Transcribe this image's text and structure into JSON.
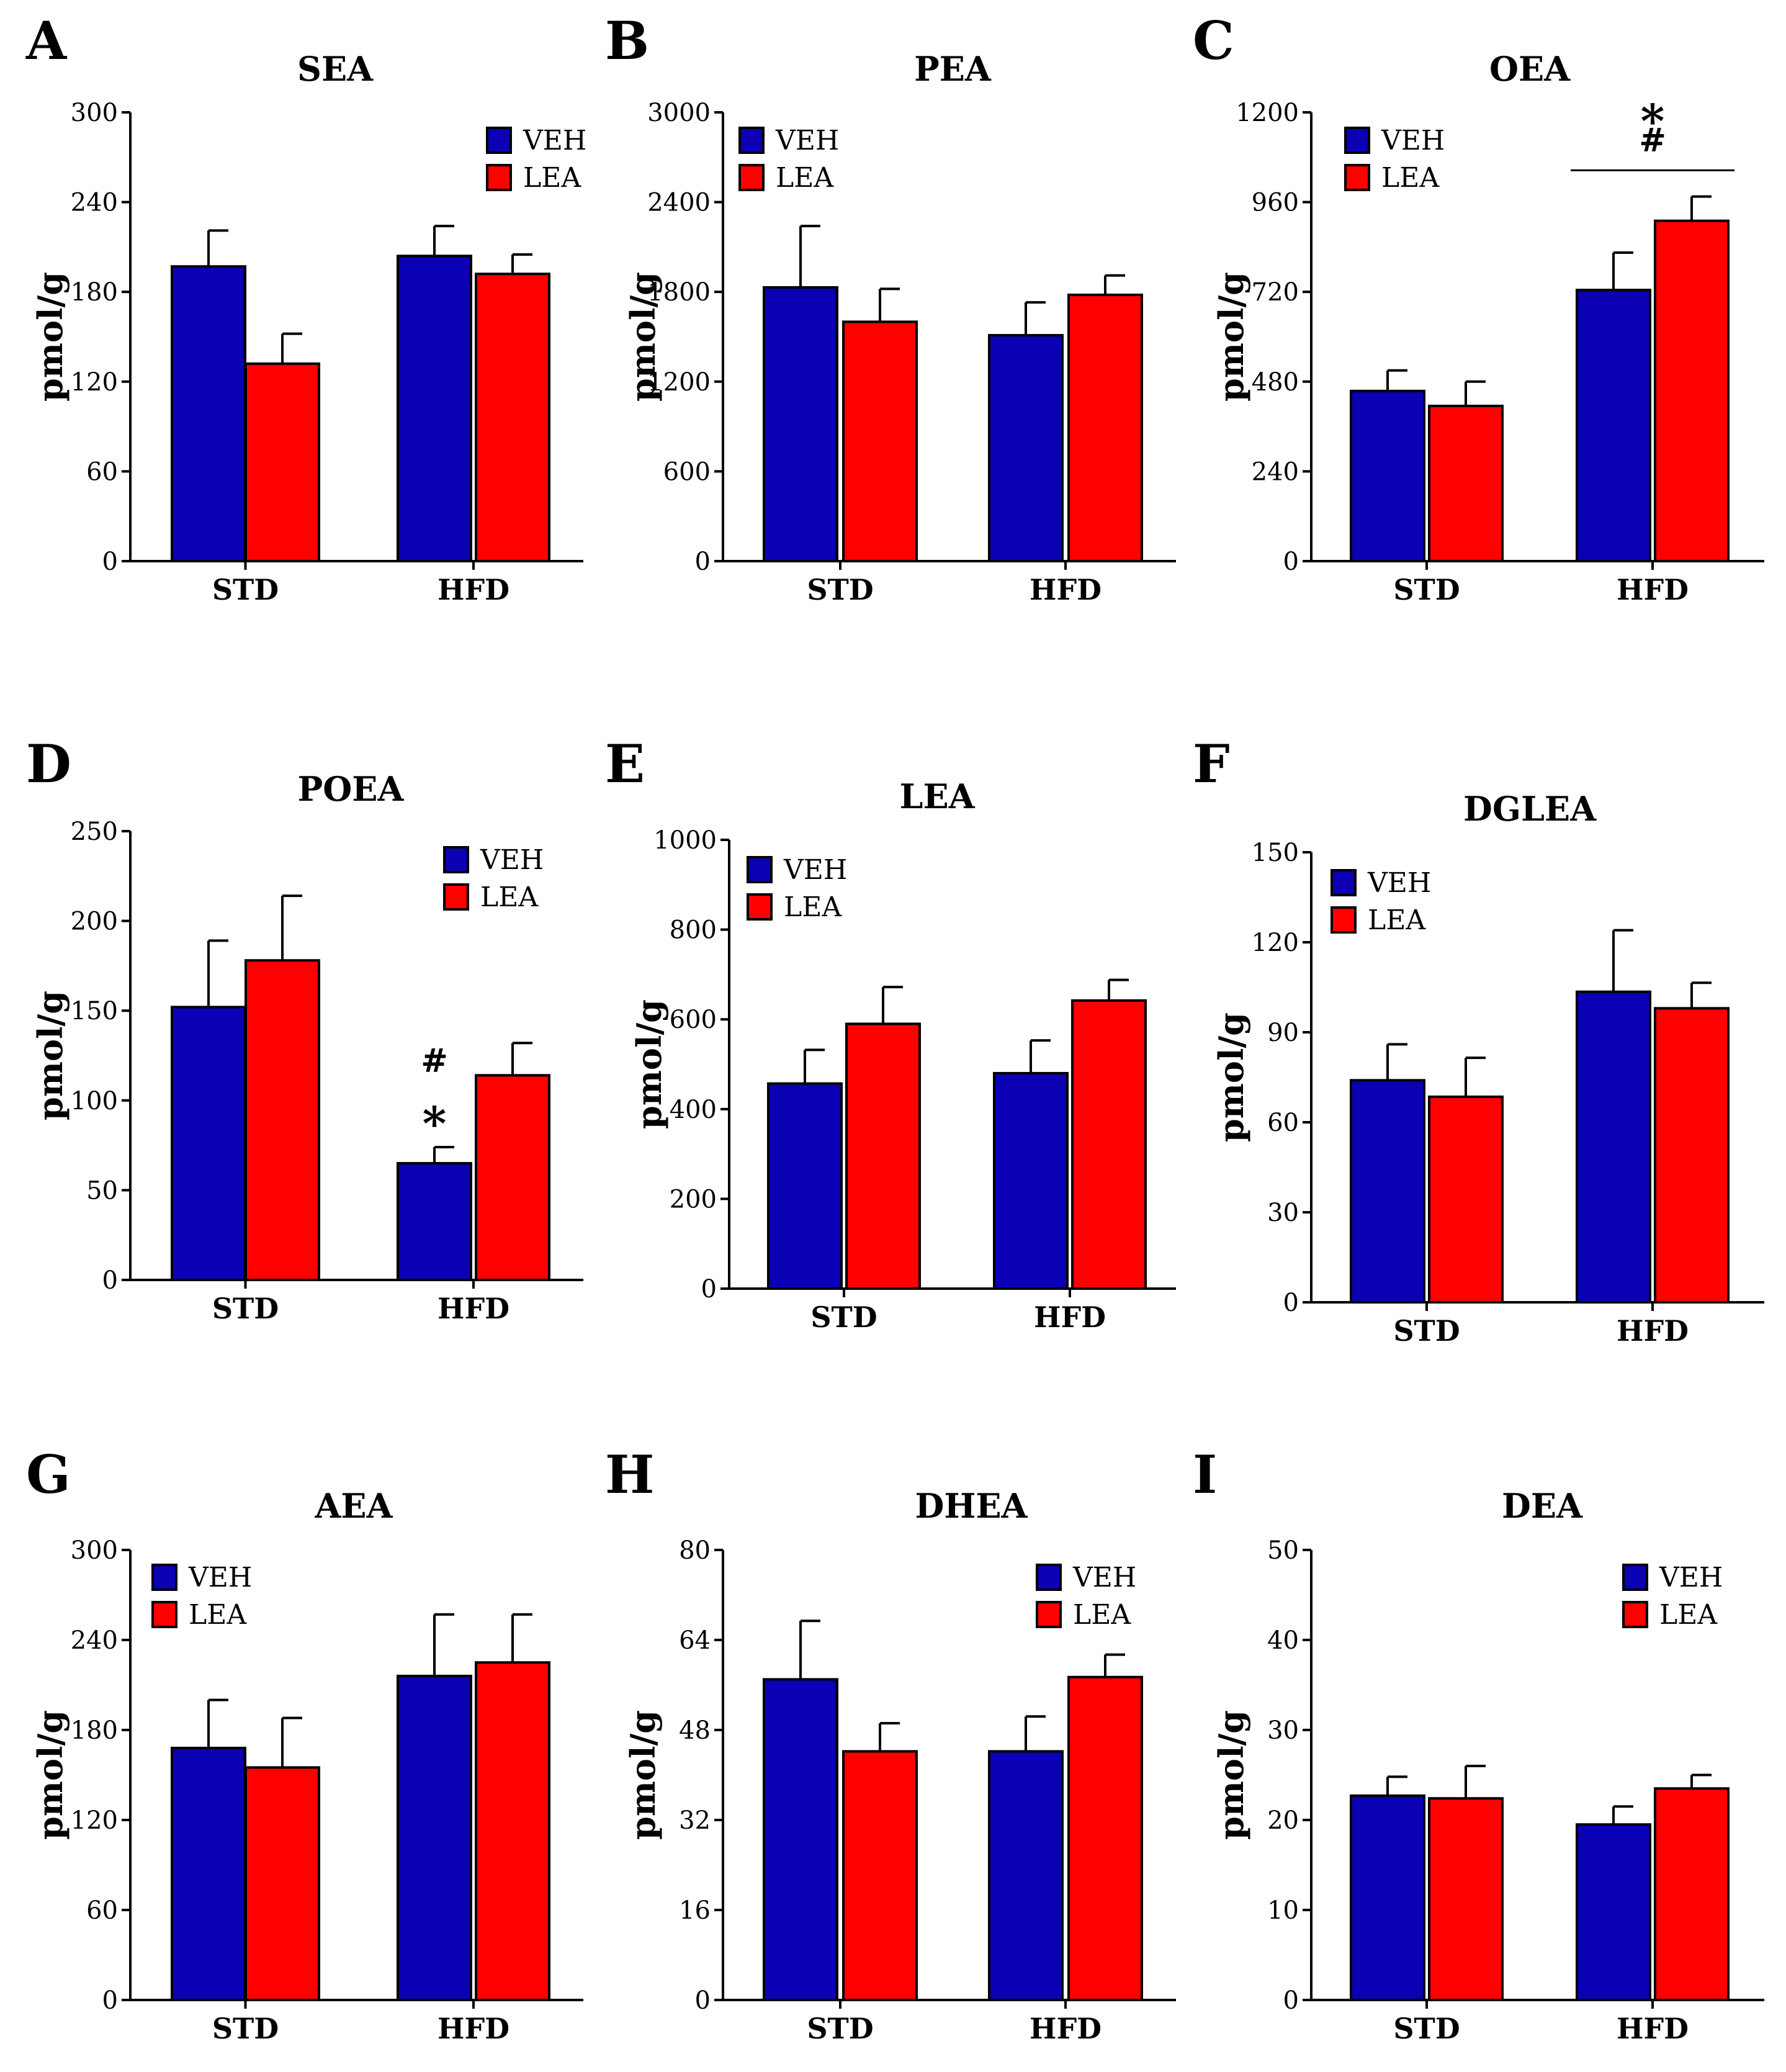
{
  "colors": {
    "veh": "#0b00b4",
    "lea": "#ff0000",
    "axis": "#000000"
  },
  "legend_labels": [
    "VEH",
    "LEA"
  ],
  "chart_data": [
    {
      "letter": "A",
      "type": "bar",
      "title": "SEA",
      "ylabel": "pmol/g",
      "ylim": [
        0,
        300
      ],
      "yticks": [
        "0",
        "60",
        "120",
        "180",
        "240",
        "300"
      ],
      "categories": [
        "STD",
        "HFD"
      ],
      "legend_position": "top-right",
      "series": [
        {
          "name": "VEH",
          "values": [
            197,
            204
          ],
          "errors": [
            24,
            20
          ]
        },
        {
          "name": "LEA",
          "values": [
            132,
            192
          ],
          "errors": [
            20,
            13
          ]
        }
      ],
      "annotations": []
    },
    {
      "letter": "B",
      "type": "bar",
      "title": "PEA",
      "ylabel": "pmol/g",
      "ylim": [
        0,
        3000
      ],
      "yticks": [
        "0",
        "600",
        "1200",
        "1800",
        "2400",
        "3000"
      ],
      "categories": [
        "STD",
        "HFD"
      ],
      "legend_position": "top-left",
      "series": [
        {
          "name": "VEH",
          "values": [
            1830,
            1510
          ],
          "errors": [
            410,
            220
          ]
        },
        {
          "name": "LEA",
          "values": [
            1600,
            1780
          ],
          "errors": [
            220,
            130
          ]
        }
      ],
      "annotations": []
    },
    {
      "letter": "C",
      "type": "bar",
      "title": "OEA",
      "ylabel": "pmol/g",
      "ylim": [
        0,
        1200
      ],
      "yticks": [
        "0",
        "240",
        "480",
        "720",
        "960",
        "1200"
      ],
      "categories": [
        "STD",
        "HFD"
      ],
      "legend_position": "top-left",
      "series": [
        {
          "name": "VEH",
          "values": [
            455,
            725
          ],
          "errors": [
            55,
            100
          ]
        },
        {
          "name": "LEA",
          "values": [
            415,
            910
          ],
          "errors": [
            65,
            65
          ]
        }
      ],
      "annotations": [
        {
          "text": "#",
          "category": 1,
          "series": null,
          "y": 1125
        },
        {
          "text": "*",
          "category": 1,
          "series": null,
          "y": 1200
        }
      ],
      "bracket": {
        "category": 1,
        "y": 1045
      }
    },
    {
      "letter": "D",
      "type": "bar",
      "title": "POEA",
      "ylabel": "pmol/g",
      "ylim": [
        0,
        250
      ],
      "yticks": [
        "0",
        "50",
        "100",
        "150",
        "200",
        "250"
      ],
      "categories": [
        "STD",
        "HFD"
      ],
      "legend_position": "top-right",
      "series": [
        {
          "name": "VEH",
          "values": [
            152,
            65
          ],
          "errors": [
            37,
            9
          ]
        },
        {
          "name": "LEA",
          "values": [
            178,
            114
          ],
          "errors": [
            36,
            18
          ]
        }
      ],
      "annotations": [
        {
          "text": "*",
          "category": 1,
          "series": 0,
          "y": 92
        },
        {
          "text": "#",
          "category": 1,
          "series": 0,
          "y": 122
        }
      ]
    },
    {
      "letter": "E",
      "type": "bar",
      "title": "LEA",
      "ylabel": "pmol/g",
      "ylim": [
        0,
        1000
      ],
      "yticks": [
        "0",
        "200",
        "400",
        "600",
        "800",
        "1000"
      ],
      "categories": [
        "STD",
        "HFD"
      ],
      "legend_position": "top-left",
      "series": [
        {
          "name": "VEH",
          "values": [
            457,
            480
          ],
          "errors": [
            75,
            73
          ]
        },
        {
          "name": "LEA",
          "values": [
            590,
            642
          ],
          "errors": [
            82,
            46
          ]
        }
      ],
      "annotations": []
    },
    {
      "letter": "F",
      "type": "bar",
      "title": "DGLEA",
      "ylabel": "pmol/g",
      "ylim": [
        0,
        150
      ],
      "yticks": [
        "0",
        "30",
        "60",
        "90",
        "120",
        "150"
      ],
      "categories": [
        "STD",
        "HFD"
      ],
      "legend_position": "top-left",
      "series": [
        {
          "name": "VEH",
          "values": [
            74,
            103.5
          ],
          "errors": [
            12,
            20.5
          ]
        },
        {
          "name": "LEA",
          "values": [
            68.5,
            98
          ],
          "errors": [
            13,
            8.5
          ]
        }
      ],
      "annotations": []
    },
    {
      "letter": "G",
      "type": "bar",
      "title": "AEA",
      "ylabel": "pmol/g",
      "ylim": [
        0,
        300
      ],
      "yticks": [
        "0",
        "60",
        "120",
        "180",
        "240",
        "300"
      ],
      "categories": [
        "STD",
        "HFD"
      ],
      "legend_position": "top-left",
      "series": [
        {
          "name": "VEH",
          "values": [
            168,
            216
          ],
          "errors": [
            32,
            41
          ]
        },
        {
          "name": "LEA",
          "values": [
            155,
            225
          ],
          "errors": [
            33,
            32
          ]
        }
      ],
      "annotations": []
    },
    {
      "letter": "H",
      "type": "bar",
      "title": "DHEA",
      "ylabel": "pmol/g",
      "ylim": [
        0,
        80
      ],
      "yticks": [
        "0",
        "16",
        "32",
        "48",
        "64",
        "80"
      ],
      "categories": [
        "STD",
        "HFD"
      ],
      "legend_position": "top-right",
      "series": [
        {
          "name": "VEH",
          "values": [
            57,
            44.2
          ],
          "errors": [
            10.4,
            6.2
          ]
        },
        {
          "name": "LEA",
          "values": [
            44.2,
            57.4
          ],
          "errors": [
            5,
            4
          ]
        }
      ],
      "annotations": []
    },
    {
      "letter": "I",
      "type": "bar",
      "title": "DEA",
      "ylabel": "pmol/g",
      "ylim": [
        0,
        50
      ],
      "yticks": [
        "0",
        "10",
        "20",
        "30",
        "40",
        "50"
      ],
      "categories": [
        "STD",
        "HFD"
      ],
      "legend_position": "top-right",
      "series": [
        {
          "name": "VEH",
          "values": [
            22.7,
            19.5
          ],
          "errors": [
            2.1,
            2
          ]
        },
        {
          "name": "LEA",
          "values": [
            22.4,
            23.5
          ],
          "errors": [
            3.6,
            1.5
          ]
        }
      ],
      "annotations": []
    }
  ]
}
